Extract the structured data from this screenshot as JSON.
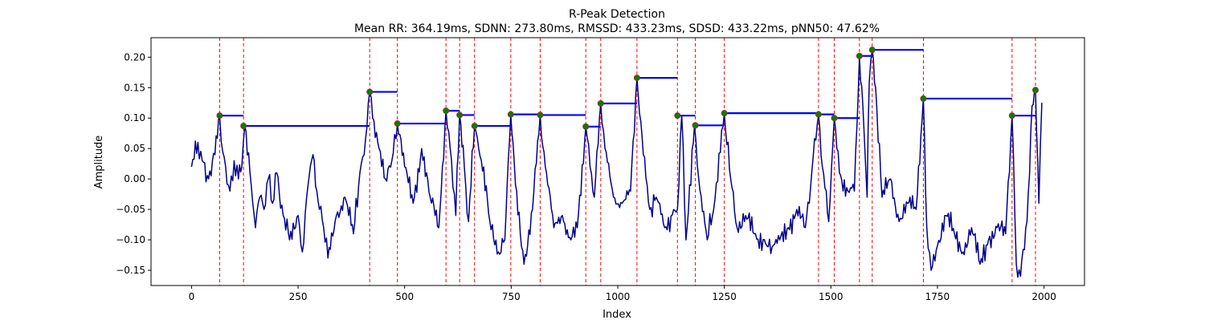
{
  "chart_data": {
    "type": "line",
    "title": "R-Peak Detection",
    "subtitle": "Mean RR: 364.19ms, SDNN: 273.80ms, RMSSD: 433.23ms, SDSD: 433.22ms, pNN50: 47.62%",
    "xlabel": "Index",
    "ylabel": "Amplitude",
    "xlim": [
      -95,
      2095
    ],
    "ylim": [
      -0.175,
      0.232
    ],
    "xticks": [
      0,
      250,
      500,
      750,
      1000,
      1250,
      1500,
      1750,
      2000
    ],
    "yticks": [
      -0.15,
      -0.1,
      -0.05,
      0.0,
      0.05,
      0.1,
      0.15,
      0.2
    ],
    "ytick_labels": [
      "−0.15",
      "−0.10",
      "−0.05",
      "0.00",
      "0.05",
      "0.10",
      "0.15",
      "0.20"
    ],
    "grid": false,
    "colors": {
      "signal": "#00008b",
      "peak_marker": "#008000",
      "peak_marker_edge": "#b22222",
      "rr_line": "#0000ff",
      "peak_vline": "#ff0000"
    },
    "signal_anchors": {
      "x": [
        0,
        15,
        25,
        40,
        55,
        66,
        70,
        80,
        90,
        100,
        110,
        118,
        125,
        140,
        150,
        160,
        170,
        180,
        190,
        200,
        215,
        230,
        250,
        260,
        270,
        285,
        300,
        310,
        320,
        340,
        360,
        380,
        395,
        405,
        418,
        425,
        440,
        455,
        470,
        483,
        500,
        520,
        540,
        560,
        580,
        597,
        610,
        620,
        629,
        640,
        650,
        664,
        680,
        700,
        720,
        735,
        749,
        760,
        780,
        800,
        818,
        830,
        850,
        870,
        890,
        905,
        925,
        935,
        945,
        960,
        970,
        990,
        1010,
        1030,
        1045,
        1060,
        1075,
        1090,
        1110,
        1140,
        1150,
        1160,
        1180,
        1190,
        1210,
        1225,
        1250,
        1265,
        1280,
        1300,
        1320,
        1350,
        1380,
        1400,
        1420,
        1440,
        1471,
        1480,
        1495,
        1508,
        1520,
        1540,
        1555,
        1567,
        1575,
        1585,
        1590,
        1597,
        1605,
        1620,
        1640,
        1660,
        1680,
        1700,
        1717,
        1725,
        1735,
        1750,
        1770,
        1790,
        1810,
        1830,
        1850,
        1870,
        1890,
        1910,
        1925,
        1935,
        1945,
        1960,
        1972,
        1980,
        1988,
        1995
      ],
      "y": [
        0.02,
        0.06,
        0.03,
        0.0,
        0.04,
        0.104,
        0.06,
        0.02,
        -0.02,
        0.03,
        0.0,
        0.02,
        0.087,
        -0.01,
        -0.08,
        -0.03,
        -0.05,
        0.0,
        -0.04,
        0.01,
        -0.06,
        -0.1,
        -0.06,
        -0.12,
        -0.03,
        0.04,
        -0.05,
        -0.08,
        -0.13,
        -0.06,
        -0.03,
        -0.09,
        0.01,
        0.04,
        0.143,
        0.1,
        0.05,
        0.0,
        0.03,
        0.091,
        0.02,
        -0.04,
        0.05,
        -0.03,
        -0.08,
        0.112,
        0.03,
        -0.06,
        0.105,
        0.02,
        -0.07,
        0.087,
        0.03,
        -0.07,
        -0.12,
        -0.1,
        0.106,
        -0.01,
        -0.14,
        -0.05,
        0.105,
        0.02,
        -0.08,
        -0.06,
        -0.1,
        -0.08,
        0.086,
        0.02,
        -0.03,
        0.124,
        0.05,
        -0.03,
        -0.04,
        -0.02,
        0.166,
        0.04,
        -0.05,
        -0.03,
        -0.08,
        -0.05,
        0.104,
        -0.1,
        0.088,
        0.0,
        -0.1,
        -0.05,
        0.108,
        0.0,
        -0.08,
        -0.06,
        -0.09,
        -0.11,
        -0.1,
        -0.08,
        -0.05,
        -0.08,
        0.106,
        0.02,
        -0.07,
        0.1,
        0.01,
        -0.02,
        -0.02,
        0.202,
        0.12,
        -0.03,
        0.16,
        0.212,
        0.15,
        -0.03,
        0.0,
        -0.07,
        -0.04,
        -0.05,
        0.132,
        -0.08,
        -0.15,
        -0.11,
        -0.06,
        -0.09,
        -0.12,
        -0.08,
        -0.14,
        -0.1,
        -0.08,
        -0.09,
        0.104,
        -0.14,
        -0.16,
        -0.07,
        0.12,
        0.146,
        -0.04,
        0.125
      ]
    },
    "peaks": {
      "x": [
        66,
        122,
        418,
        483,
        597,
        629,
        664,
        749,
        818,
        925,
        960,
        1045,
        1140,
        1182,
        1250,
        1471,
        1508,
        1567,
        1597,
        1717,
        1925,
        1980
      ],
      "y": [
        0.104,
        0.087,
        0.143,
        0.091,
        0.112,
        0.105,
        0.087,
        0.106,
        0.105,
        0.086,
        0.124,
        0.166,
        0.104,
        0.088,
        0.108,
        0.106,
        0.1,
        0.202,
        0.212,
        0.132,
        0.104,
        0.146
      ]
    }
  }
}
